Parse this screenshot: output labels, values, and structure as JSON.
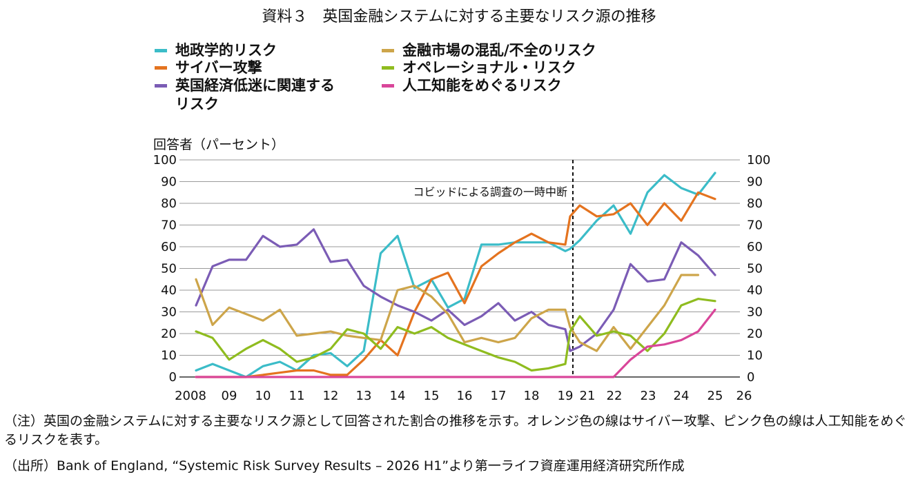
{
  "title": "資料３　英国金融システムに対する主要なリスク源の推移",
  "y_axis_label": "回答者（パーセント）",
  "annotation": "コビッドによる調査の一時中断",
  "note1": "（注）英国の金融システムに対する主要なリスク源として回答された割合の推移を示す。オレンジ色の線はサイバー攻撃、ピンク色の線は人工知能をめぐるリスクを表す。",
  "note2": "（出所）Bank of England, “Systemic Risk Survey Results – 2026 H1”より第一ライフ資産運用経済研究所作成",
  "legend": [
    {
      "label": "地政学的リスク",
      "color": "#3bbcc8"
    },
    {
      "label": "サイバー攻撃",
      "color": "#e4731f"
    },
    {
      "label": "英国経済低迷に関連する\nリスク",
      "color": "#7b5cb5"
    },
    {
      "label": "金融市場の混乱/不全のリスク",
      "color": "#cda54a"
    },
    {
      "label": "オペレーショナル・リスク",
      "color": "#8fbc1f"
    },
    {
      "label": "人工知能をめぐるリスク",
      "color": "#d9469a"
    }
  ],
  "chart_data": {
    "type": "line",
    "x_tick_labels": [
      "2008",
      "09",
      "10",
      "11",
      "12",
      "13",
      "14",
      "15",
      "16",
      "17",
      "18",
      "19",
      "21",
      "22",
      "23",
      "24",
      "25",
      "26"
    ],
    "x": [
      2008.0,
      2008.5,
      2009.0,
      2009.5,
      2010.0,
      2010.5,
      2011.0,
      2011.5,
      2012.0,
      2012.5,
      2013.0,
      2013.5,
      2014.0,
      2014.5,
      2015.0,
      2015.5,
      2016.0,
      2016.5,
      2017.0,
      2017.5,
      2018.0,
      2018.5,
      2019.0,
      2019.5,
      2020.5,
      2021.0,
      2021.5,
      2022.0,
      2022.5,
      2023.0,
      2023.5,
      2024.0,
      2024.5,
      2025.0,
      2025.5
    ],
    "ylim": [
      0,
      100
    ],
    "yticks": [
      0,
      10,
      20,
      30,
      40,
      50,
      60,
      70,
      80,
      90,
      100
    ],
    "covid_break_x": 2019.75,
    "grid": true,
    "series": [
      {
        "name": "地政学的リスク",
        "color": "#3bbcc8",
        "values": [
          3,
          6,
          3,
          0,
          5,
          7,
          3,
          10,
          11,
          5,
          12,
          57,
          65,
          41,
          45,
          32,
          36,
          61,
          61,
          62,
          62,
          62,
          58,
          59,
          63,
          72,
          79,
          66,
          85,
          93,
          87,
          84,
          94,
          null,
          null
        ]
      },
      {
        "name": "サイバー攻撃",
        "color": "#e4731f",
        "values": [
          0,
          0,
          0,
          0,
          1,
          2,
          3,
          3,
          1,
          1,
          8,
          17,
          10,
          30,
          45,
          48,
          34,
          51,
          57,
          62,
          66,
          62,
          61,
          74,
          79,
          74,
          75,
          80,
          70,
          80,
          72,
          85,
          82,
          null,
          null
        ]
      },
      {
        "name": "英国経済低迷に関連するリスク",
        "color": "#7b5cb5",
        "values": [
          33,
          51,
          54,
          54,
          65,
          60,
          61,
          68,
          53,
          54,
          42,
          37,
          33,
          30,
          26,
          31,
          24,
          28,
          34,
          26,
          30,
          24,
          22,
          12,
          14,
          20,
          31,
          52,
          44,
          45,
          62,
          56,
          47,
          null,
          null
        ]
      },
      {
        "name": "金融市場の混乱/不全のリスク",
        "color": "#cda54a",
        "values": [
          45,
          24,
          32,
          29,
          26,
          31,
          19,
          20,
          21,
          19,
          18,
          17,
          40,
          42,
          37,
          29,
          16,
          18,
          16,
          18,
          27,
          31,
          31,
          23,
          16,
          12,
          23,
          13,
          23,
          33,
          47,
          47,
          null,
          null,
          null
        ]
      },
      {
        "name": "オペレーショナル・リスク",
        "color": "#8fbc1f",
        "values": [
          21,
          18,
          8,
          13,
          17,
          13,
          7,
          9,
          13,
          22,
          20,
          13,
          23,
          20,
          23,
          18,
          15,
          12,
          9,
          7,
          3,
          4,
          6,
          21,
          28,
          19,
          21,
          19,
          12,
          20,
          33,
          36,
          35,
          null,
          null
        ]
      },
      {
        "name": "人工知能をめぐるリスク",
        "color": "#d9469a",
        "values": [
          0,
          0,
          0,
          0,
          0,
          0,
          0,
          0,
          0,
          0,
          0,
          0,
          0,
          0,
          0,
          0,
          0,
          0,
          0,
          0,
          0,
          0,
          0,
          0,
          0,
          0,
          0,
          8,
          14,
          15,
          17,
          21,
          31,
          null,
          null
        ]
      }
    ]
  }
}
